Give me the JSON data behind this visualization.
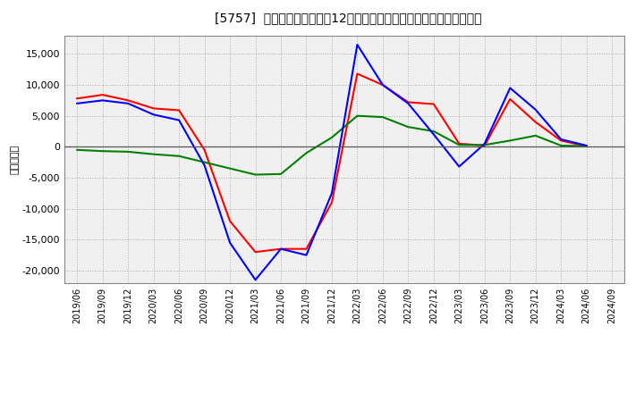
{
  "title": "[5757]  キャッシュフローの12か月移動合計の対前年同期増減額の推移",
  "ylabel": "（百万円）",
  "background_color": "#ffffff",
  "plot_bg_color": "#f0f0f0",
  "grid_color": "#aaaaaa",
  "x_labels": [
    "2019/06",
    "2019/09",
    "2019/12",
    "2020/03",
    "2020/06",
    "2020/09",
    "2020/12",
    "2021/03",
    "2021/06",
    "2021/09",
    "2021/12",
    "2022/03",
    "2022/06",
    "2022/09",
    "2022/12",
    "2023/03",
    "2023/06",
    "2023/09",
    "2023/12",
    "2024/03",
    "2024/06",
    "2024/09"
  ],
  "operating_cf": [
    7800,
    8400,
    7500,
    6200,
    5900,
    -500,
    -12000,
    -17000,
    -16500,
    -16500,
    -9000,
    11800,
    10000,
    7200,
    6900,
    500,
    200,
    7700,
    4000,
    1000,
    100,
    null
  ],
  "investing_cf": [
    -500,
    -700,
    -800,
    -1200,
    -1500,
    -2500,
    -3500,
    -4500,
    -4400,
    -1000,
    1500,
    5000,
    4800,
    3200,
    2500,
    300,
    300,
    1000,
    1800,
    200,
    100,
    null
  ],
  "free_cf": [
    7000,
    7500,
    7000,
    5200,
    4300,
    -3000,
    -15500,
    -21500,
    -16500,
    -17500,
    -7500,
    16500,
    10000,
    7000,
    2000,
    -3200,
    500,
    9500,
    6000,
    1200,
    200,
    null
  ],
  "operating_color": "#ff0000",
  "investing_color": "#008000",
  "free_color": "#0000ff",
  "ylim": [
    -22000,
    18000
  ],
  "yticks": [
    -20000,
    -15000,
    -10000,
    -5000,
    0,
    5000,
    10000,
    15000
  ]
}
